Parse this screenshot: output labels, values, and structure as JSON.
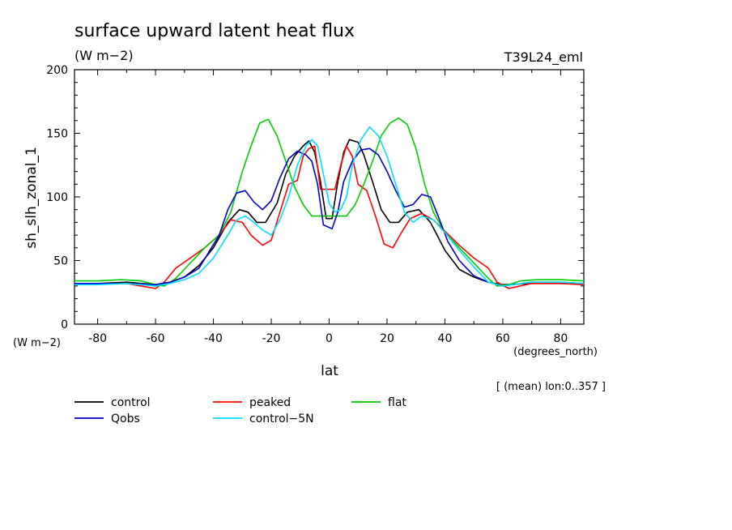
{
  "chart_data": {
    "type": "line",
    "title": "surface upward latent heat flux",
    "subtitle": "(W m−2)",
    "run_label": "T39L24_eml",
    "xlabel": "lat",
    "ylabel": "sh_slh_zonal_1",
    "y_units": "(W m−2)",
    "x_units": "(degrees_north)",
    "footnote": "[ (mean) lon:0..357 ]",
    "xlim": [
      -88,
      88
    ],
    "ylim": [
      0,
      200
    ],
    "x_ticks": [
      -80,
      -60,
      -40,
      -20,
      0,
      20,
      40,
      60,
      80
    ],
    "y_ticks": [
      0,
      50,
      100,
      150,
      200
    ],
    "grid": false,
    "legend_position": "bottom",
    "series": [
      {
        "name": "control",
        "color": "#000000",
        "points": [
          [
            -88,
            32
          ],
          [
            -80,
            32
          ],
          [
            -70,
            33
          ],
          [
            -60,
            31
          ],
          [
            -55,
            33
          ],
          [
            -50,
            37
          ],
          [
            -45,
            46
          ],
          [
            -40,
            60
          ],
          [
            -35,
            80
          ],
          [
            -31,
            90
          ],
          [
            -28,
            88
          ],
          [
            -25,
            80
          ],
          [
            -22,
            80
          ],
          [
            -18,
            95
          ],
          [
            -15,
            118
          ],
          [
            -12,
            132
          ],
          [
            -9,
            140
          ],
          [
            -7,
            144
          ],
          [
            -5,
            135
          ],
          [
            -3,
            112
          ],
          [
            -1,
            83
          ],
          [
            0,
            83
          ],
          [
            1,
            83
          ],
          [
            3,
            112
          ],
          [
            5,
            135
          ],
          [
            7,
            145
          ],
          [
            10,
            143
          ],
          [
            12,
            133
          ],
          [
            15,
            112
          ],
          [
            18,
            90
          ],
          [
            21,
            80
          ],
          [
            24,
            80
          ],
          [
            27,
            88
          ],
          [
            31,
            90
          ],
          [
            35,
            80
          ],
          [
            40,
            58
          ],
          [
            45,
            43
          ],
          [
            50,
            37
          ],
          [
            55,
            33
          ],
          [
            60,
            31
          ],
          [
            70,
            32
          ],
          [
            80,
            32
          ],
          [
            88,
            32
          ]
        ]
      },
      {
        "name": "peaked",
        "color": "#ff0000",
        "points": [
          [
            -88,
            32
          ],
          [
            -80,
            32
          ],
          [
            -70,
            32
          ],
          [
            -65,
            30
          ],
          [
            -60,
            28
          ],
          [
            -57,
            33
          ],
          [
            -53,
            44
          ],
          [
            -48,
            52
          ],
          [
            -43,
            60
          ],
          [
            -38,
            70
          ],
          [
            -34,
            82
          ],
          [
            -30,
            80
          ],
          [
            -27,
            70
          ],
          [
            -23,
            62
          ],
          [
            -20,
            66
          ],
          [
            -17,
            88
          ],
          [
            -14,
            110
          ],
          [
            -11,
            113
          ],
          [
            -9,
            132
          ],
          [
            -7,
            138
          ],
          [
            -5,
            140
          ],
          [
            -3,
            106
          ],
          [
            -1,
            106
          ],
          [
            0,
            106
          ],
          [
            2,
            106
          ],
          [
            4,
            125
          ],
          [
            6,
            140
          ],
          [
            8,
            132
          ],
          [
            10,
            110
          ],
          [
            13,
            105
          ],
          [
            16,
            85
          ],
          [
            19,
            63
          ],
          [
            22,
            60
          ],
          [
            25,
            72
          ],
          [
            28,
            83
          ],
          [
            32,
            87
          ],
          [
            36,
            82
          ],
          [
            40,
            73
          ],
          [
            45,
            62
          ],
          [
            50,
            52
          ],
          [
            55,
            44
          ],
          [
            58,
            33
          ],
          [
            62,
            28
          ],
          [
            66,
            30
          ],
          [
            70,
            32
          ],
          [
            80,
            32
          ],
          [
            88,
            31
          ]
        ]
      },
      {
        "name": "flat",
        "color": "#00cc00",
        "points": [
          [
            -88,
            34
          ],
          [
            -80,
            34
          ],
          [
            -72,
            35
          ],
          [
            -65,
            34
          ],
          [
            -60,
            31
          ],
          [
            -57,
            30
          ],
          [
            -53,
            36
          ],
          [
            -48,
            48
          ],
          [
            -43,
            60
          ],
          [
            -38,
            70
          ],
          [
            -34,
            88
          ],
          [
            -30,
            120
          ],
          [
            -27,
            140
          ],
          [
            -24,
            158
          ],
          [
            -21,
            161
          ],
          [
            -18,
            148
          ],
          [
            -15,
            128
          ],
          [
            -12,
            108
          ],
          [
            -9,
            94
          ],
          [
            -6,
            85
          ],
          [
            -3,
            85
          ],
          [
            0,
            85
          ],
          [
            3,
            85
          ],
          [
            6,
            85
          ],
          [
            9,
            94
          ],
          [
            12,
            110
          ],
          [
            15,
            128
          ],
          [
            18,
            148
          ],
          [
            21,
            158
          ],
          [
            24,
            162
          ],
          [
            27,
            157
          ],
          [
            30,
            138
          ],
          [
            33,
            110
          ],
          [
            36,
            88
          ],
          [
            40,
            72
          ],
          [
            45,
            60
          ],
          [
            50,
            48
          ],
          [
            55,
            36
          ],
          [
            58,
            30
          ],
          [
            62,
            31
          ],
          [
            66,
            34
          ],
          [
            72,
            35
          ],
          [
            80,
            35
          ],
          [
            88,
            34
          ]
        ]
      },
      {
        "name": "Qobs",
        "color": "#0000cc",
        "points": [
          [
            -88,
            32
          ],
          [
            -80,
            32
          ],
          [
            -70,
            32
          ],
          [
            -60,
            31
          ],
          [
            -55,
            33
          ],
          [
            -50,
            37
          ],
          [
            -45,
            44
          ],
          [
            -42,
            55
          ],
          [
            -38,
            70
          ],
          [
            -35,
            90
          ],
          [
            -32,
            103
          ],
          [
            -29,
            105
          ],
          [
            -26,
            96
          ],
          [
            -23,
            90
          ],
          [
            -20,
            97
          ],
          [
            -17,
            115
          ],
          [
            -14,
            130
          ],
          [
            -11,
            136
          ],
          [
            -8,
            133
          ],
          [
            -6,
            128
          ],
          [
            -4,
            110
          ],
          [
            -2,
            78
          ],
          [
            1,
            75
          ],
          [
            3,
            88
          ],
          [
            5,
            112
          ],
          [
            8,
            128
          ],
          [
            11,
            137
          ],
          [
            14,
            138
          ],
          [
            17,
            133
          ],
          [
            20,
            120
          ],
          [
            23,
            105
          ],
          [
            26,
            92
          ],
          [
            29,
            94
          ],
          [
            32,
            102
          ],
          [
            35,
            100
          ],
          [
            38,
            83
          ],
          [
            41,
            65
          ],
          [
            45,
            50
          ],
          [
            50,
            38
          ],
          [
            55,
            33
          ],
          [
            60,
            30
          ],
          [
            70,
            33
          ],
          [
            80,
            33
          ],
          [
            88,
            32
          ]
        ]
      },
      {
        "name": "control−5N",
        "color": "#00e0ff",
        "points": [
          [
            -88,
            31
          ],
          [
            -80,
            31
          ],
          [
            -70,
            32
          ],
          [
            -60,
            30
          ],
          [
            -55,
            32
          ],
          [
            -50,
            35
          ],
          [
            -45,
            40
          ],
          [
            -40,
            52
          ],
          [
            -35,
            70
          ],
          [
            -32,
            82
          ],
          [
            -29,
            85
          ],
          [
            -26,
            80
          ],
          [
            -23,
            74
          ],
          [
            -20,
            70
          ],
          [
            -17,
            82
          ],
          [
            -14,
            100
          ],
          [
            -11,
            125
          ],
          [
            -8,
            140
          ],
          [
            -6,
            145
          ],
          [
            -4,
            140
          ],
          [
            -2,
            118
          ],
          [
            0,
            95
          ],
          [
            2,
            88
          ],
          [
            4,
            90
          ],
          [
            6,
            100
          ],
          [
            8,
            125
          ],
          [
            11,
            145
          ],
          [
            14,
            155
          ],
          [
            17,
            148
          ],
          [
            20,
            132
          ],
          [
            23,
            110
          ],
          [
            26,
            88
          ],
          [
            29,
            80
          ],
          [
            32,
            85
          ],
          [
            36,
            82
          ],
          [
            40,
            72
          ],
          [
            45,
            58
          ],
          [
            50,
            45
          ],
          [
            55,
            33
          ],
          [
            60,
            30
          ],
          [
            70,
            33
          ],
          [
            80,
            33
          ],
          [
            88,
            32
          ]
        ]
      }
    ]
  }
}
